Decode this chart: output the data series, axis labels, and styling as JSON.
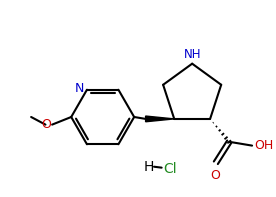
{
  "bg_color": "#ffffff",
  "bond_color": "#000000",
  "atom_colors": {
    "N": "#0000cd",
    "O": "#cc0000",
    "Cl": "#228B22",
    "H": "#000000",
    "C": "#000000"
  },
  "figsize": [
    2.76,
    1.97
  ],
  "dpi": 100
}
